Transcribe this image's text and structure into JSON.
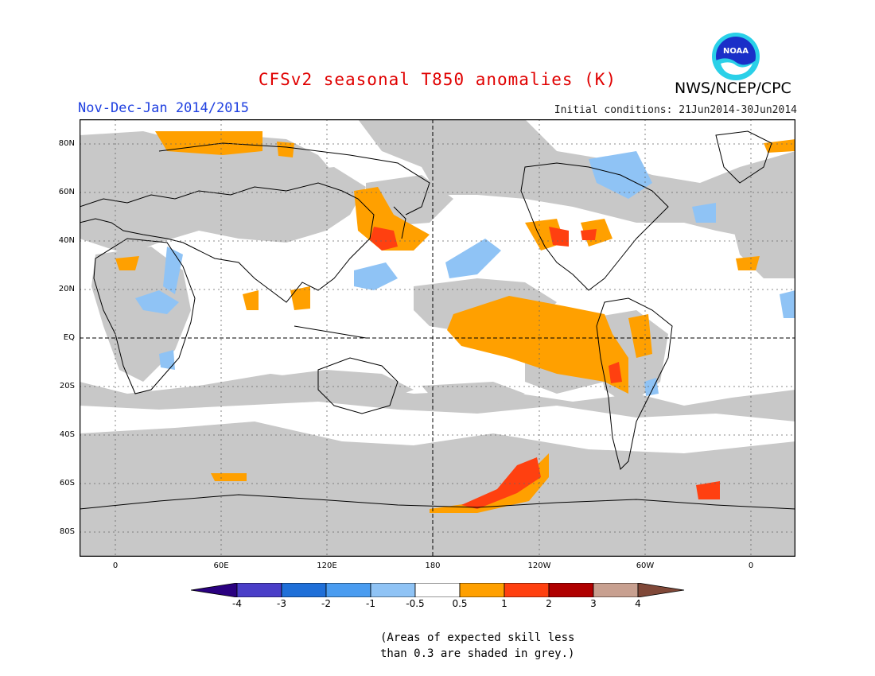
{
  "title": "CFSv2 seasonal T850 anomalies (K)",
  "period": "Nov-Dec-Jan 2014/2015",
  "initial_conditions": "Initial conditions: 21Jun2014-30Jun2014",
  "agency": "NWS/NCEP/CPC",
  "logo_text": "NOAA",
  "lat_labels": [
    "80N",
    "60N",
    "40N",
    "20N",
    "EQ",
    "20S",
    "40S",
    "60S",
    "80S"
  ],
  "lon_labels": [
    "0",
    "60E",
    "120E",
    "180",
    "120W",
    "60W",
    "0"
  ],
  "colorbar": {
    "ticks": [
      "-4",
      "-3",
      "-2",
      "-1",
      "-0.5",
      "0.5",
      "1",
      "2",
      "3",
      "4"
    ],
    "colors": [
      "#2a0080",
      "#4a3ec8",
      "#1f6fd8",
      "#4a9cf0",
      "#8fc3f5",
      "#ffffff",
      "#ffa000",
      "#ff4010",
      "#b00000",
      "#c8a090",
      "#804838"
    ]
  },
  "note_line1": "(Areas of expected skill less",
  "note_line2": "than 0.3 are shaded in grey.)",
  "colors": {
    "skill_mask": "#c8c8c8",
    "title": "#e00000",
    "period": "#1e3fe0"
  }
}
